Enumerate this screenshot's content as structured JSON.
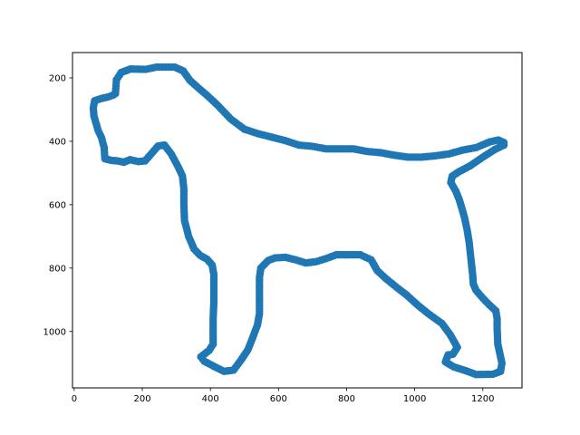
{
  "chart_data": {
    "type": "scatter",
    "title": "",
    "xlabel": "",
    "ylabel": "",
    "xlim": [
      -5,
      1315
    ],
    "ylim": [
      1178,
      120
    ],
    "y_inverted": true,
    "grid": false,
    "x_ticks": [
      0,
      200,
      400,
      600,
      800,
      1000,
      1200
    ],
    "y_ticks": [
      200,
      400,
      600,
      800,
      1000
    ],
    "x_tick_labels": [
      "0",
      "200",
      "400",
      "600",
      "800",
      "1000",
      "1200"
    ],
    "y_tick_labels": [
      "200",
      "400",
      "600",
      "800",
      "1000"
    ],
    "marker_color": "#1f77b4",
    "outline_vertices": [
      [
        121,
        250
      ],
      [
        124,
        206
      ],
      [
        138,
        183
      ],
      [
        165,
        172
      ],
      [
        210,
        173
      ],
      [
        242,
        166
      ],
      [
        295,
        166
      ],
      [
        320,
        178
      ],
      [
        340,
        208
      ],
      [
        365,
        232
      ],
      [
        390,
        255
      ],
      [
        420,
        285
      ],
      [
        460,
        330
      ],
      [
        500,
        362
      ],
      [
        540,
        376
      ],
      [
        580,
        387
      ],
      [
        620,
        398
      ],
      [
        660,
        412
      ],
      [
        700,
        416
      ],
      [
        740,
        424
      ],
      [
        780,
        424
      ],
      [
        820,
        424
      ],
      [
        860,
        432
      ],
      [
        900,
        436
      ],
      [
        940,
        444
      ],
      [
        980,
        450
      ],
      [
        1020,
        450
      ],
      [
        1060,
        446
      ],
      [
        1100,
        440
      ],
      [
        1140,
        428
      ],
      [
        1180,
        420
      ],
      [
        1220,
        402
      ],
      [
        1245,
        396
      ],
      [
        1262,
        404
      ],
      [
        1262,
        412
      ],
      [
        1235,
        426
      ],
      [
        1200,
        450
      ],
      [
        1162,
        478
      ],
      [
        1130,
        496
      ],
      [
        1110,
        510
      ],
      [
        1106,
        530
      ],
      [
        1120,
        556
      ],
      [
        1130,
        582
      ],
      [
        1138,
        610
      ],
      [
        1146,
        640
      ],
      [
        1154,
        680
      ],
      [
        1160,
        720
      ],
      [
        1166,
        780
      ],
      [
        1170,
        820
      ],
      [
        1172,
        850
      ],
      [
        1180,
        870
      ],
      [
        1200,
        895
      ],
      [
        1218,
        915
      ],
      [
        1238,
        935
      ],
      [
        1242,
        960
      ],
      [
        1242,
        990
      ],
      [
        1244,
        1040
      ],
      [
        1250,
        1070
      ],
      [
        1256,
        1100
      ],
      [
        1252,
        1126
      ],
      [
        1230,
        1135
      ],
      [
        1180,
        1136
      ],
      [
        1150,
        1124
      ],
      [
        1115,
        1112
      ],
      [
        1090,
        1096
      ],
      [
        1098,
        1074
      ],
      [
        1112,
        1072
      ],
      [
        1125,
        1050
      ],
      [
        1104,
        1010
      ],
      [
        1080,
        975
      ],
      [
        1040,
        944
      ],
      [
        1010,
        918
      ],
      [
        976,
        885
      ],
      [
        946,
        860
      ],
      [
        914,
        832
      ],
      [
        890,
        808
      ],
      [
        872,
        774
      ],
      [
        840,
        758
      ],
      [
        800,
        758
      ],
      [
        770,
        758
      ],
      [
        740,
        770
      ],
      [
        710,
        780
      ],
      [
        680,
        784
      ],
      [
        650,
        774
      ],
      [
        620,
        766
      ],
      [
        590,
        768
      ],
      [
        570,
        776
      ],
      [
        548,
        800
      ],
      [
        544,
        830
      ],
      [
        544,
        870
      ],
      [
        544,
        910
      ],
      [
        544,
        944
      ],
      [
        538,
        980
      ],
      [
        524,
        1020
      ],
      [
        510,
        1058
      ],
      [
        490,
        1090
      ],
      [
        468,
        1122
      ],
      [
        440,
        1126
      ],
      [
        410,
        1110
      ],
      [
        382,
        1094
      ],
      [
        372,
        1080
      ],
      [
        396,
        1060
      ],
      [
        408,
        1040
      ],
      [
        408,
        1000
      ],
      [
        408,
        960
      ],
      [
        410,
        910
      ],
      [
        410,
        860
      ],
      [
        410,
        820
      ],
      [
        405,
        790
      ],
      [
        390,
        772
      ],
      [
        370,
        760
      ],
      [
        352,
        740
      ],
      [
        336,
        700
      ],
      [
        324,
        650
      ],
      [
        322,
        600
      ],
      [
        322,
        550
      ],
      [
        318,
        510
      ],
      [
        305,
        480
      ],
      [
        285,
        440
      ],
      [
        265,
        412
      ],
      [
        246,
        415
      ],
      [
        226,
        440
      ],
      [
        208,
        462
      ],
      [
        188,
        464
      ],
      [
        164,
        458
      ],
      [
        146,
        466
      ],
      [
        127,
        462
      ],
      [
        108,
        460
      ],
      [
        90,
        455
      ],
      [
        88,
        420
      ],
      [
        80,
        388
      ],
      [
        70,
        365
      ],
      [
        58,
        320
      ],
      [
        56,
        295
      ],
      [
        60,
        272
      ],
      [
        80,
        265
      ],
      [
        100,
        260
      ],
      [
        115,
        254
      ]
    ]
  }
}
